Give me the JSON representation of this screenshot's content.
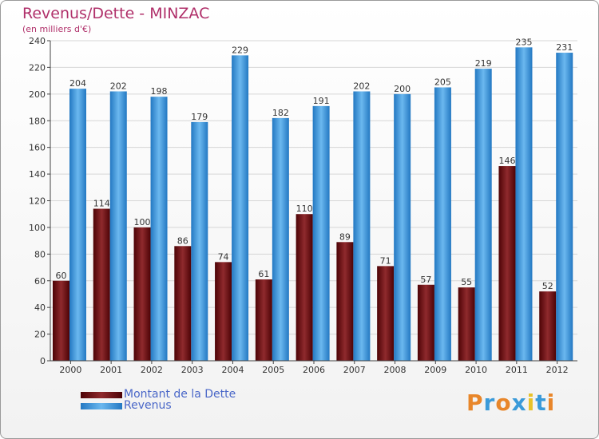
{
  "chart_data": {
    "type": "bar",
    "title": "Revenus/Dette - MINZAC",
    "subtitle": "(en milliers d'€)",
    "categories": [
      "2000",
      "2001",
      "2002",
      "2003",
      "2004",
      "2005",
      "2006",
      "2007",
      "2008",
      "2009",
      "2010",
      "2011",
      "2012"
    ],
    "series": [
      {
        "name": "Montant de la Dette",
        "color": "#7a1518",
        "values": [
          60,
          114,
          100,
          86,
          74,
          61,
          110,
          89,
          71,
          57,
          55,
          146,
          52
        ]
      },
      {
        "name": "Revenus",
        "color": "#3d9be0",
        "values": [
          204,
          202,
          198,
          179,
          229,
          182,
          191,
          202,
          200,
          205,
          219,
          235,
          231
        ]
      }
    ],
    "ylim": [
      0,
      240
    ],
    "yticks": [
      0,
      20,
      40,
      60,
      80,
      100,
      120,
      140,
      160,
      180,
      200,
      220,
      240
    ],
    "grid": true,
    "legend_position": "bottom-left"
  },
  "logo": {
    "text": "Proxiti",
    "letters": [
      {
        "char": "P",
        "color": "#e8862a"
      },
      {
        "char": "r",
        "color": "#3a9ad9"
      },
      {
        "char": "o",
        "color": "#e8862a"
      },
      {
        "char": "x",
        "color": "#3a9ad9"
      },
      {
        "char": "i",
        "color": "#e8c22a"
      },
      {
        "char": "t",
        "color": "#3a9ad9"
      },
      {
        "char": "i",
        "color": "#e8862a"
      }
    ]
  }
}
